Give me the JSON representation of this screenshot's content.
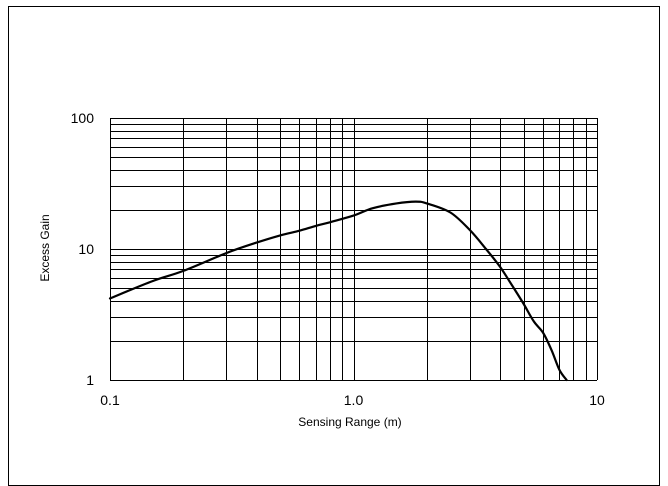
{
  "chart_data": {
    "type": "line",
    "title": "",
    "xlabel": "Sensing Range (m)",
    "ylabel": "Excess Gain",
    "x_scale": "log",
    "y_scale": "log",
    "xlim": [
      0.1,
      10
    ],
    "ylim": [
      1,
      100
    ],
    "x_ticks": [
      {
        "value": 0.1,
        "label": "0.1"
      },
      {
        "value": 1,
        "label": "1.0"
      },
      {
        "value": 10,
        "label": "10"
      }
    ],
    "y_ticks": [
      {
        "value": 1,
        "label": "1"
      },
      {
        "value": 10,
        "label": "10"
      },
      {
        "value": 100,
        "label": "100"
      }
    ],
    "grid": true,
    "legend": "none",
    "series": [
      {
        "x": [
          0.1,
          0.15,
          0.2,
          0.3,
          0.4,
          0.5,
          0.6,
          0.7,
          0.8,
          1.0,
          1.2,
          1.5,
          1.8,
          2.0,
          2.5,
          3.0,
          3.5,
          4.0,
          4.5,
          5.0,
          5.5,
          6.0,
          6.5,
          7.0,
          7.5
        ],
        "y": [
          4.2,
          5.7,
          6.8,
          9.3,
          11.2,
          12.7,
          13.8,
          15.0,
          16.0,
          18.0,
          20.5,
          22.3,
          23.0,
          22.3,
          19.0,
          14.0,
          10.0,
          7.3,
          5.2,
          3.8,
          2.8,
          2.3,
          1.7,
          1.2,
          1.0
        ]
      }
    ],
    "color": "#000000"
  }
}
